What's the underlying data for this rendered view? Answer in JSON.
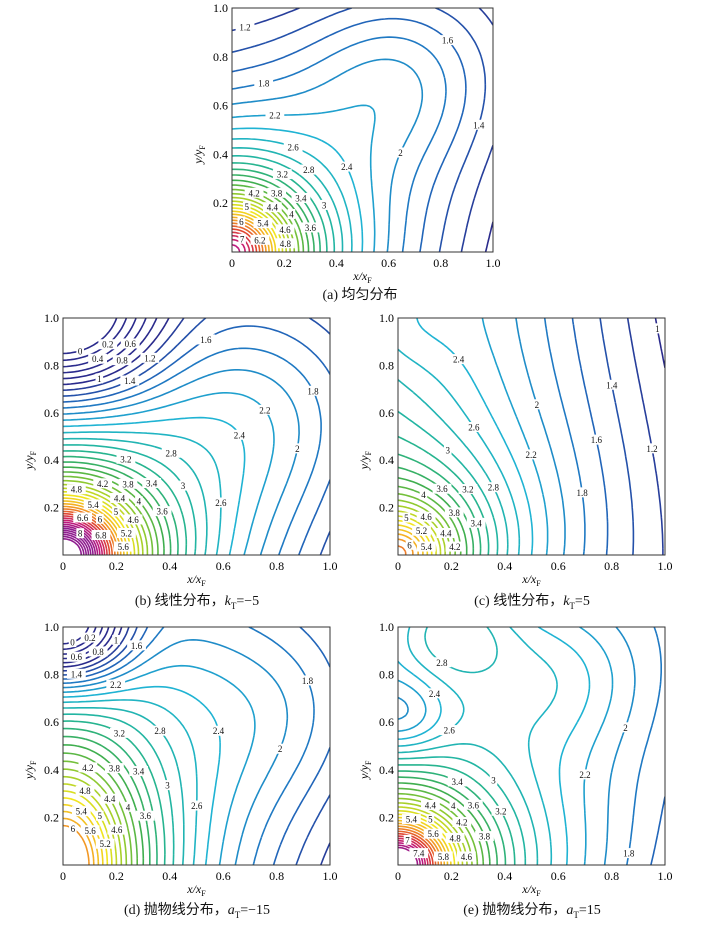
{
  "chart_data": [
    {
      "id": "a",
      "type": "contour",
      "caption": {
        "label": "(a)",
        "text": "均匀分布",
        "symbol": "",
        "sub": "",
        "value": ""
      },
      "xlabel": "x/x",
      "xlabel_sub": "F",
      "ylabel": "y/y",
      "ylabel_sub": "F",
      "xlim": [
        0,
        1
      ],
      "ylim": [
        0,
        1
      ],
      "xticks": [
        "0",
        "0.2",
        "0.4",
        "0.6",
        "0.8",
        "1.0"
      ],
      "yticks": [
        "0.2",
        "0.4",
        "0.6",
        "0.8",
        "1.0"
      ],
      "levels": {
        "min": 1,
        "max": 7.6,
        "step": 0.2
      },
      "field": "uniform"
    },
    {
      "id": "b",
      "type": "contour",
      "caption": {
        "label": "(b)",
        "text": "线性分布，",
        "symbol": "k",
        "sub": "T",
        "value": "=−5"
      },
      "xlabel": "x/x",
      "xlabel_sub": "F",
      "ylabel": "y/y",
      "ylabel_sub": "F",
      "xlim": [
        0,
        1
      ],
      "ylim": [
        0,
        1
      ],
      "xticks": [
        "0",
        "0.2",
        "0.4",
        "0.6",
        "0.8",
        "1.0"
      ],
      "yticks": [
        "0.2",
        "0.4",
        "0.6",
        "0.8",
        "1.0"
      ],
      "levels": {
        "min": 0,
        "max": 9,
        "step": 0.2
      },
      "field": "linear_neg"
    },
    {
      "id": "c",
      "type": "contour",
      "caption": {
        "label": "(c)",
        "text": "线性分布，",
        "symbol": "k",
        "sub": "T",
        "value": "=5"
      },
      "xlabel": "x/x",
      "xlabel_sub": "F",
      "ylabel": "y/y",
      "ylabel_sub": "F",
      "xlim": [
        0,
        1
      ],
      "ylim": [
        0,
        1
      ],
      "xticks": [
        "0",
        "0.2",
        "0.4",
        "0.6",
        "0.8",
        "1.0"
      ],
      "yticks": [
        "0.2",
        "0.4",
        "0.6",
        "0.8",
        "1.0"
      ],
      "levels": {
        "min": 0.8,
        "max": 6.6,
        "step": 0.2
      },
      "field": "linear_pos"
    },
    {
      "id": "d",
      "type": "contour",
      "caption": {
        "label": "(d)",
        "text": "抛物线分布，",
        "symbol": "a",
        "sub": "T",
        "value": "=−15"
      },
      "xlabel": "x/x",
      "xlabel_sub": "F",
      "ylabel": "y/y",
      "ylabel_sub": "F",
      "xlim": [
        0,
        1
      ],
      "ylim": [
        0,
        1
      ],
      "xticks": [
        "0",
        "0.2",
        "0.4",
        "0.6",
        "0.8",
        "1.0"
      ],
      "yticks": [
        "0.2",
        "0.4",
        "0.6",
        "0.8",
        "1.0"
      ],
      "levels": {
        "min": 0,
        "max": 6,
        "step": 0.2
      },
      "field": "parabolic_neg"
    },
    {
      "id": "e",
      "type": "contour",
      "caption": {
        "label": "(e)",
        "text": "抛物线分布，",
        "symbol": "a",
        "sub": "T",
        "value": "=15"
      },
      "xlabel": "x/x",
      "xlabel_sub": "F",
      "ylabel": "y/y",
      "ylabel_sub": "F",
      "xlim": [
        0,
        1
      ],
      "ylim": [
        0,
        1
      ],
      "xticks": [
        "0",
        "0.2",
        "0.4",
        "0.6",
        "0.8",
        "1.0"
      ],
      "yticks": [
        "0.2",
        "0.4",
        "0.6",
        "0.8",
        "1.0"
      ],
      "levels": {
        "min": 1.2,
        "max": 7.8,
        "step": 0.2
      },
      "field": "parabolic_pos"
    }
  ],
  "colormap": [
    "#2a2a8c",
    "#1f6fc0",
    "#1fb3d3",
    "#22b59a",
    "#3fae4e",
    "#9ccd2b",
    "#f1e51d",
    "#f5a623",
    "#e0452f",
    "#c2177a",
    "#8e1b8e"
  ]
}
